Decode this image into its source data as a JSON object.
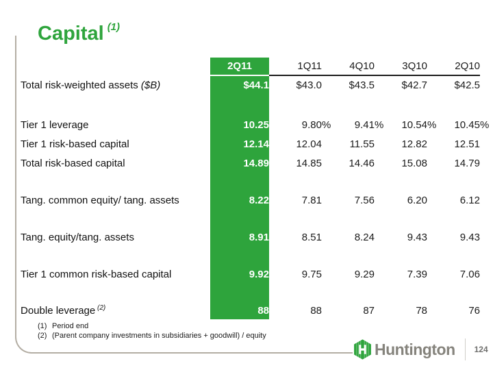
{
  "title": {
    "text": "Capital",
    "sup": "(1)"
  },
  "colors": {
    "brand_green": "#2ea43c",
    "header_underline": "#1a1a1a",
    "frame_gray": "#b3ada3",
    "wordmark_gray": "#85837c"
  },
  "table": {
    "columns": [
      "2Q11",
      "1Q11",
      "4Q10",
      "3Q10",
      "2Q10"
    ],
    "highlighted_column": "2Q11",
    "rows": [
      {
        "label": "Total risk-weighted assets",
        "label_note": "($B)",
        "values": [
          "$44.1",
          "$43.0",
          "$43.5",
          "$42.7",
          "$42.5"
        ]
      },
      {
        "label": "Tier 1 leverage",
        "values": [
          "10.25%",
          "9.80%",
          "9.41%",
          "10.54%",
          "10.45%"
        ]
      },
      {
        "label": "Tier 1 risk-based capital",
        "values": [
          "12.14",
          "12.04",
          "11.55",
          "12.82",
          "12.51"
        ]
      },
      {
        "label": "Total risk-based capital",
        "values": [
          "14.89",
          "14.85",
          "14.46",
          "15.08",
          "14.79"
        ]
      },
      {
        "label": "Tang. common equity/ tang. assets",
        "values": [
          "8.22",
          "7.81",
          "7.56",
          "6.20",
          "6.12"
        ]
      },
      {
        "label": "Tang. equity/tang. assets",
        "values": [
          "8.91",
          "8.51",
          "8.24",
          "9.43",
          "9.43"
        ]
      },
      {
        "label": "Tier 1 common risk-based capital",
        "values": [
          "9.92",
          "9.75",
          "9.29",
          "7.39",
          "7.06"
        ]
      },
      {
        "label": "Double leverage",
        "label_sup": "(2)",
        "values": [
          "88",
          "88",
          "87",
          "78",
          "76"
        ]
      }
    ]
  },
  "footnotes": [
    {
      "num": "(1)",
      "text": "Period end"
    },
    {
      "num": "(2)",
      "text": "(Parent company investments in subsidiaries + goodwill) / equity"
    }
  ],
  "footer": {
    "logo_icon": "huntington-hexagon-icon",
    "logo_text": "Huntington",
    "page_number": "124"
  }
}
